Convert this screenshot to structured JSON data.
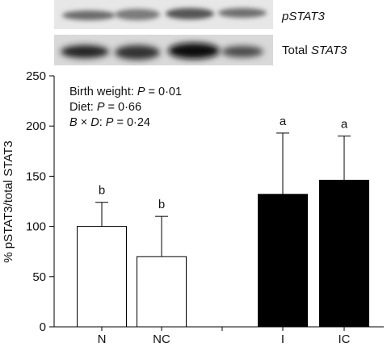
{
  "blot": {
    "rows": [
      {
        "label": "pSTAT3"
      },
      {
        "label_prefix": "Total ",
        "label_italic": "STAT3"
      }
    ]
  },
  "stats": {
    "birth_weight": {
      "prefix": "Birth weight: ",
      "p": "P",
      "value": " = 0·01"
    },
    "diet": {
      "prefix": "Diet: ",
      "p": "P",
      "value": " = 0·66"
    },
    "interaction": {
      "b": "B",
      "times": " × ",
      "d": "D",
      "colon": ": ",
      "p": "P",
      "value": " = 0·24"
    }
  },
  "chart_data": {
    "type": "bar",
    "ylabel": "% pSTAT3/total STAT3",
    "xlabel": "",
    "ylim": [
      0,
      250
    ],
    "yticks": [
      0,
      50,
      100,
      150,
      200,
      250
    ],
    "grid": false,
    "categories": [
      "N",
      "NC",
      "I",
      "IC"
    ],
    "values": [
      100,
      70,
      132,
      146
    ],
    "error_upper": [
      124,
      110,
      193,
      190
    ],
    "significance": [
      "b",
      "b",
      "a",
      "a"
    ],
    "fills": [
      "#ffffff",
      "#ffffff",
      "#000000",
      "#000000"
    ]
  }
}
